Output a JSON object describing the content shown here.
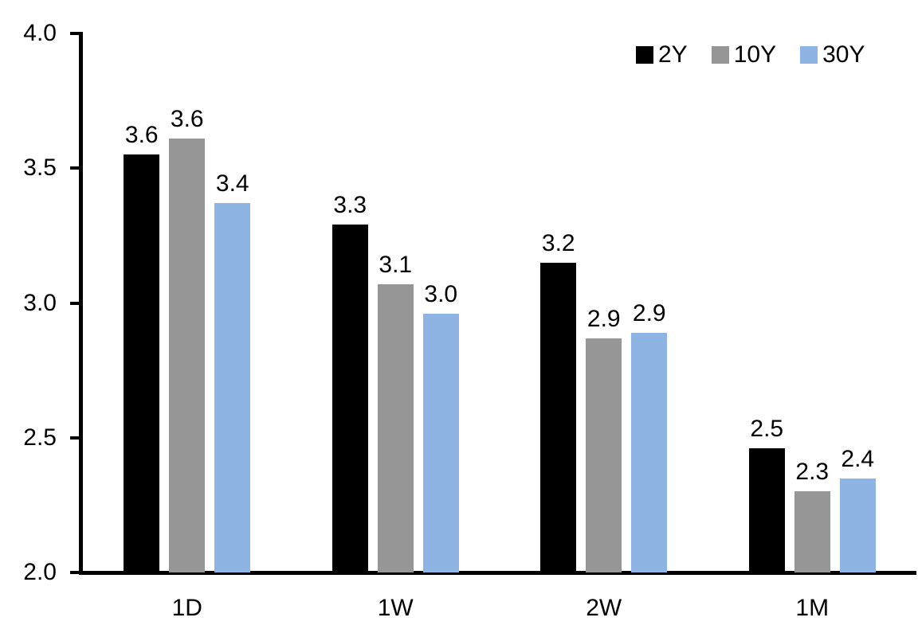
{
  "chart_data": {
    "type": "bar",
    "title": "",
    "xlabel": "",
    "ylabel": "",
    "categories": [
      "1D",
      "1W",
      "2W",
      "1M"
    ],
    "series": [
      {
        "name": "2Y",
        "color": "#000000",
        "values": [
          3.55,
          3.29,
          3.15,
          2.46
        ],
        "data_labels": [
          "3.6",
          "3.3",
          "3.2",
          "2.5"
        ]
      },
      {
        "name": "10Y",
        "color": "#969696",
        "values": [
          3.61,
          3.07,
          2.87,
          2.3
        ],
        "data_labels": [
          "3.6",
          "3.1",
          "2.9",
          "2.3"
        ]
      },
      {
        "name": "30Y",
        "color": "#8DB4E2",
        "values": [
          3.37,
          2.96,
          2.89,
          2.35
        ],
        "data_labels": [
          "3.4",
          "3.0",
          "2.9",
          "2.4"
        ]
      }
    ],
    "y_axis": {
      "min": 2.0,
      "max": 4.0,
      "tick_step": 0.5,
      "tick_labels": [
        "4.0",
        "3.5",
        "3.0",
        "2.5",
        "2.0"
      ]
    },
    "legend": {
      "position": "top-right",
      "entries": [
        "2Y",
        "10Y",
        "30Y"
      ]
    },
    "grid": false,
    "axis_color": "#000000",
    "background_color": "#FFFFFF"
  }
}
